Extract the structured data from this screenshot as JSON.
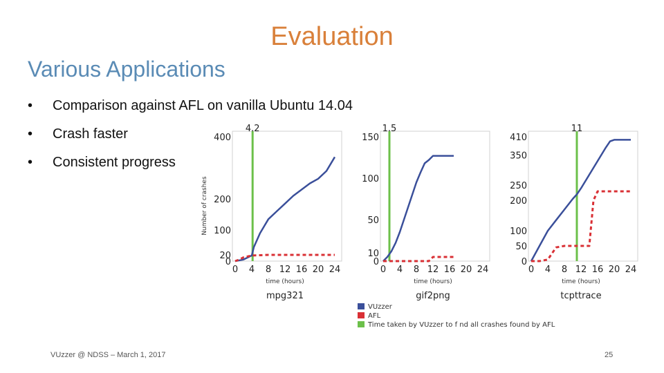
{
  "slide": {
    "title": "Evaluation",
    "subtitle": "Various Applications",
    "bullets": [
      "Comparison against AFL on vanilla Ubuntu 14.04",
      "Crash faster",
      "Consistent progress"
    ],
    "footer": "VUzzer @ NDSS – March 1, 2017",
    "page_number": "25"
  },
  "colors": {
    "vuzzer": "#3a4f9a",
    "afl": "#d93035",
    "marker": "#6cc04a"
  },
  "chart_data": [
    {
      "type": "line",
      "name": "mpg321",
      "ylabel": "Number of crashes",
      "xlabel": "time (hours)",
      "xticks": [
        0,
        4,
        8,
        12,
        16,
        20,
        24
      ],
      "yticks": [
        0,
        20,
        100,
        200,
        400
      ],
      "ylim": [
        0,
        400
      ],
      "xlim": [
        0,
        24
      ],
      "marker": {
        "x": 4.2,
        "label": "4.2"
      },
      "series": [
        {
          "name": "VUzzer",
          "style": "solid",
          "x": [
            0,
            2,
            4,
            4.5,
            6,
            8,
            10,
            12,
            14,
            16,
            18,
            20,
            22,
            24
          ],
          "y": [
            0,
            5,
            18,
            45,
            90,
            135,
            160,
            185,
            210,
            230,
            250,
            265,
            290,
            335
          ]
        },
        {
          "name": "AFL",
          "style": "dashed",
          "x": [
            0,
            1,
            2,
            4,
            8,
            12,
            16,
            20,
            24
          ],
          "y": [
            0,
            5,
            12,
            18,
            20,
            20,
            20,
            20,
            20
          ]
        }
      ]
    },
    {
      "type": "line",
      "name": "gif2png",
      "xlabel": "time (hours)",
      "xticks": [
        0,
        4,
        8,
        12,
        16,
        20,
        24
      ],
      "yticks": [
        0,
        10,
        50,
        100,
        150
      ],
      "ylim": [
        0,
        150
      ],
      "xlim": [
        0,
        24
      ],
      "marker": {
        "x": 1.5,
        "label": "1.5"
      },
      "series": [
        {
          "name": "VUzzer",
          "style": "solid",
          "x": [
            0,
            1,
            2,
            3,
            4,
            5,
            6,
            7,
            8,
            9,
            10,
            11,
            12,
            14,
            16,
            17
          ],
          "y": [
            0,
            5,
            12,
            22,
            35,
            50,
            65,
            80,
            95,
            107,
            118,
            122,
            127,
            127,
            127,
            127
          ]
        },
        {
          "name": "AFL",
          "style": "dashed",
          "x": [
            0,
            4,
            8,
            11,
            12,
            14,
            17
          ],
          "y": [
            0,
            0,
            0,
            0,
            5,
            5,
            5
          ]
        }
      ]
    },
    {
      "type": "line",
      "name": "tcpttrace",
      "xlabel": "time (hours)",
      "xticks": [
        0,
        4,
        8,
        12,
        16,
        20,
        24
      ],
      "yticks": [
        0,
        50,
        100,
        200,
        250,
        350,
        410
      ],
      "ylim": [
        0,
        410
      ],
      "xlim": [
        0,
        24
      ],
      "marker": {
        "x": 11,
        "label": "11"
      },
      "series": [
        {
          "name": "VUzzer",
          "style": "solid",
          "x": [
            0,
            2,
            4,
            6,
            8,
            10,
            11,
            12,
            14,
            16,
            18,
            19,
            20,
            22,
            24
          ],
          "y": [
            0,
            50,
            100,
            135,
            170,
            205,
            220,
            240,
            285,
            330,
            375,
            395,
            400,
            400,
            400
          ]
        },
        {
          "name": "AFL",
          "style": "dashed",
          "x": [
            0,
            2,
            4,
            6,
            8,
            12,
            14,
            15,
            16,
            20,
            24
          ],
          "y": [
            0,
            0,
            5,
            45,
            50,
            50,
            50,
            200,
            230,
            230,
            230
          ]
        }
      ]
    }
  ],
  "legend": [
    {
      "label": "VUzzer",
      "color_key": "vuzzer"
    },
    {
      "label": "AFL",
      "color_key": "afl"
    },
    {
      "label": "Time taken by VUzzer to f nd all crashes found by AFL",
      "color_key": "marker"
    }
  ]
}
